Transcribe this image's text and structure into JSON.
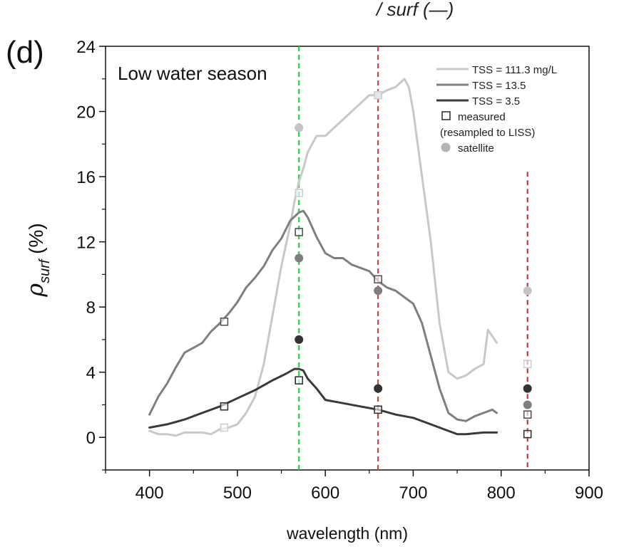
{
  "header_fragment": "/ surf (—)",
  "chart_data": {
    "type": "line",
    "panel_label": "(d)",
    "annotation": "Low water season",
    "xlabel": "wavelength (nm)",
    "ylabel": "ρsurf (%)",
    "ylabel_main": "ρ",
    "ylabel_sub": "surf",
    "ylabel_unit": " (%)",
    "xlim": [
      350,
      900
    ],
    "ylim": [
      -2,
      24
    ],
    "x_ticks": [
      400,
      500,
      600,
      700,
      800,
      900
    ],
    "y_ticks": [
      0,
      4,
      8,
      12,
      16,
      20,
      24
    ],
    "grid": false,
    "legend_position": "top-right",
    "legend": [
      {
        "label": "TSS = 111.3 mg/L",
        "marker": "line",
        "color": "#c8c8c8"
      },
      {
        "label": "TSS = 13.5",
        "marker": "line",
        "color": "#7f7f7f"
      },
      {
        "label": "TSS = 3.5",
        "marker": "line",
        "color": "#3a3a3a"
      },
      {
        "label": "measured",
        "marker": "open-square",
        "color": "#333333"
      },
      {
        "label": "(resampled to LISS)",
        "marker": "none",
        "color": "#333333"
      },
      {
        "label": "satellite",
        "marker": "filled-circle",
        "color": "#b5b5b5"
      }
    ],
    "vlines": [
      {
        "x": 570,
        "color": "#2ecc40",
        "from": -2,
        "to": 24
      },
      {
        "x": 660,
        "color": "#d94040",
        "from": -2,
        "to": 24
      },
      {
        "x": 830,
        "color": "#b04040",
        "from": -2,
        "to": 16.3
      }
    ],
    "series": [
      {
        "name": "TSS = 111.3 mg/L",
        "color": "#c8c8c8",
        "x": [
          400,
          410,
          420,
          430,
          440,
          450,
          460,
          470,
          480,
          490,
          500,
          510,
          520,
          530,
          540,
          550,
          560,
          565,
          570,
          575,
          580,
          590,
          600,
          610,
          620,
          630,
          640,
          650,
          660,
          670,
          680,
          690,
          695,
          700,
          710,
          720,
          730,
          740,
          750,
          760,
          770,
          780,
          785,
          790,
          795
        ],
        "y": [
          0.4,
          0.2,
          0.2,
          0.1,
          0.3,
          0.3,
          0.3,
          0.2,
          0.5,
          0.6,
          0.8,
          1.5,
          2.5,
          4.5,
          7.5,
          10.5,
          13,
          14.5,
          15.7,
          16.5,
          17.5,
          18.5,
          18.5,
          19,
          19.5,
          20,
          20.5,
          21,
          21,
          21.3,
          21.5,
          22,
          21.5,
          20,
          16,
          12,
          7,
          4,
          3.6,
          3.8,
          4.2,
          4.5,
          6.6,
          6.2,
          5.8
        ]
      },
      {
        "name": "TSS = 13.5",
        "color": "#7f7f7f",
        "x": [
          400,
          410,
          420,
          430,
          440,
          450,
          460,
          470,
          480,
          490,
          500,
          510,
          520,
          530,
          540,
          550,
          560,
          570,
          575,
          580,
          590,
          600,
          610,
          620,
          630,
          640,
          650,
          660,
          670,
          680,
          690,
          700,
          710,
          720,
          730,
          740,
          750,
          760,
          770,
          780,
          790,
          795
        ],
        "y": [
          1.4,
          2.5,
          3.3,
          4.3,
          5.2,
          5.5,
          5.8,
          6.5,
          7,
          7.6,
          8.3,
          9.2,
          9.8,
          10.5,
          11.5,
          12.2,
          13.3,
          13.8,
          13.9,
          13.5,
          12.3,
          11.3,
          11,
          11,
          10.6,
          10.4,
          10.2,
          9.6,
          9.2,
          9,
          8.6,
          8.2,
          7,
          5,
          3,
          1.5,
          1.1,
          1,
          1.3,
          1.5,
          1.7,
          1.5
        ]
      },
      {
        "name": "TSS = 3.5",
        "color": "#3a3a3a",
        "x": [
          400,
          420,
          440,
          460,
          480,
          500,
          520,
          540,
          555,
          565,
          570,
          575,
          580,
          590,
          600,
          620,
          640,
          660,
          680,
          700,
          720,
          740,
          750,
          760,
          780,
          795
        ],
        "y": [
          0.6,
          0.8,
          1.1,
          1.5,
          1.9,
          2.4,
          2.9,
          3.5,
          3.9,
          4.2,
          4.2,
          4.1,
          3.6,
          3,
          2.3,
          2.1,
          1.9,
          1.7,
          1.4,
          1.2,
          0.8,
          0.4,
          0.2,
          0.2,
          0.3,
          0.3
        ]
      }
    ],
    "measured_points": [
      {
        "x": 485,
        "y": 7.1,
        "color": "#555555"
      },
      {
        "x": 485,
        "y": 1.9,
        "color": "#333333"
      },
      {
        "x": 485,
        "y": 0.6,
        "color": "#cfcfcf"
      },
      {
        "x": 570,
        "y": 15,
        "color": "#cfcfcf"
      },
      {
        "x": 570,
        "y": 12.6,
        "color": "#555555"
      },
      {
        "x": 570,
        "y": 3.5,
        "color": "#333333"
      },
      {
        "x": 660,
        "y": 21,
        "color": "#cfcfcf"
      },
      {
        "x": 660,
        "y": 9.7,
        "color": "#555555"
      },
      {
        "x": 660,
        "y": 1.7,
        "color": "#333333"
      },
      {
        "x": 830,
        "y": 4.5,
        "color": "#cfcfcf"
      },
      {
        "x": 830,
        "y": 1.4,
        "color": "#555555"
      },
      {
        "x": 830,
        "y": 0.2,
        "color": "#333333"
      }
    ],
    "satellite_points": [
      {
        "x": 570,
        "y": 19,
        "color": "#c4c4c4"
      },
      {
        "x": 570,
        "y": 11,
        "color": "#7f7f7f"
      },
      {
        "x": 570,
        "y": 6,
        "color": "#333333"
      },
      {
        "x": 660,
        "y": 21,
        "color": "#c4c4c4"
      },
      {
        "x": 660,
        "y": 9,
        "color": "#7f7f7f"
      },
      {
        "x": 660,
        "y": 3,
        "color": "#333333"
      },
      {
        "x": 830,
        "y": 9,
        "color": "#c4c4c4"
      },
      {
        "x": 830,
        "y": 3,
        "color": "#333333"
      },
      {
        "x": 830,
        "y": 2,
        "color": "#7f7f7f"
      }
    ]
  }
}
